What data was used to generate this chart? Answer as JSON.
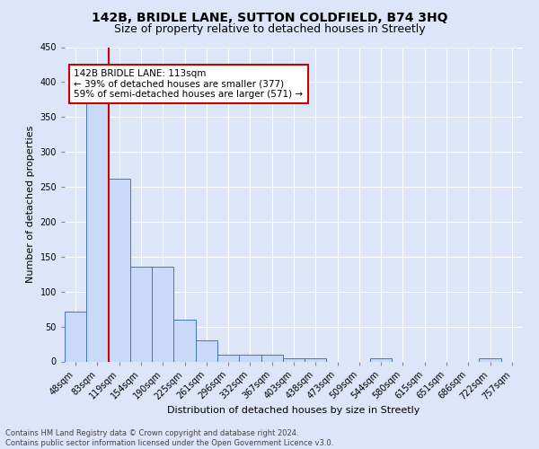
{
  "title": "142B, BRIDLE LANE, SUTTON COLDFIELD, B74 3HQ",
  "subtitle": "Size of property relative to detached houses in Streetly",
  "xlabel": "Distribution of detached houses by size in Streetly",
  "ylabel": "Number of detached properties",
  "bin_labels": [
    "48sqm",
    "83sqm",
    "119sqm",
    "154sqm",
    "190sqm",
    "225sqm",
    "261sqm",
    "296sqm",
    "332sqm",
    "367sqm",
    "403sqm",
    "438sqm",
    "473sqm",
    "509sqm",
    "544sqm",
    "580sqm",
    "615sqm",
    "651sqm",
    "686sqm",
    "722sqm",
    "757sqm"
  ],
  "bar_heights": [
    72,
    377,
    262,
    136,
    136,
    60,
    30,
    10,
    10,
    10,
    5,
    5,
    0,
    0,
    4,
    0,
    0,
    0,
    0,
    4,
    0
  ],
  "bar_color": "#c9daf8",
  "bar_edge_color": "#4472c4",
  "highlight_line_color": "#cc0000",
  "annotation_text": "142B BRIDLE LANE: 113sqm\n← 39% of detached houses are smaller (377)\n59% of semi-detached houses are larger (571) →",
  "annotation_box_color": "#ffffff",
  "annotation_box_edge_color": "#cc0000",
  "ylim": [
    0,
    450
  ],
  "yticks": [
    0,
    50,
    100,
    150,
    200,
    250,
    300,
    350,
    400,
    450
  ],
  "footer_line1": "Contains HM Land Registry data © Crown copyright and database right 2024.",
  "footer_line2": "Contains public sector information licensed under the Open Government Licence v3.0.",
  "bg_color": "#dce6f8",
  "plot_bg_color": "#dce6f8",
  "grid_color": "#ffffff",
  "title_fontsize": 10,
  "subtitle_fontsize": 9,
  "ylabel_fontsize": 8,
  "xlabel_fontsize": 8,
  "tick_fontsize": 7,
  "footer_fontsize": 6
}
